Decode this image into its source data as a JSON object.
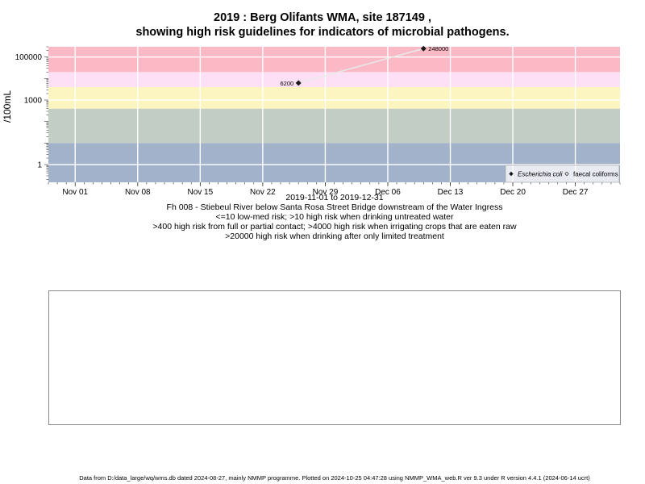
{
  "chart_data": {
    "type": "scatter",
    "title": "2019 : Berg Olifants WMA, site 187149 ,",
    "subtitle": "showing high risk guidelines for indicators of microbial pathogens.",
    "ylabel": "/100mL",
    "y_scale": "log10",
    "ylim": [
      0.15,
      300000
    ],
    "xlim": [
      "2019-10-29",
      "2020-01-01"
    ],
    "x_ticks": [
      {
        "date": "2019-11-01",
        "label": "Nov 01"
      },
      {
        "date": "2019-11-08",
        "label": "Nov 08"
      },
      {
        "date": "2019-11-15",
        "label": "Nov 15"
      },
      {
        "date": "2019-11-22",
        "label": "Nov 22"
      },
      {
        "date": "2019-11-29",
        "label": "Nov 29"
      },
      {
        "date": "2019-12-06",
        "label": "Dec 06"
      },
      {
        "date": "2019-12-13",
        "label": "Dec 13"
      },
      {
        "date": "2019-12-20",
        "label": "Dec 20"
      },
      {
        "date": "2019-12-27",
        "label": "Dec 27"
      }
    ],
    "y_ticks": [
      {
        "value": 1,
        "label": "1"
      },
      {
        "value": 1000,
        "label": "1000"
      },
      {
        "value": 100000,
        "label": "100000"
      }
    ],
    "bands": [
      {
        "from": 0.15,
        "to": 10,
        "color": "#a2b2cb"
      },
      {
        "from": 10,
        "to": 400,
        "color": "#c2cdc3"
      },
      {
        "from": 400,
        "to": 4000,
        "color": "#fdf5bf"
      },
      {
        "from": 4000,
        "to": 20000,
        "color": "#fde0f5"
      },
      {
        "from": 20000,
        "to": 300000,
        "color": "#fbb9c5"
      }
    ],
    "series": [
      {
        "name": "Escherichia coli",
        "marker": "filled-diamond",
        "color": "#1a1a1a",
        "points": [
          {
            "date": "2019-11-26",
            "value": 6200,
            "label": "6200"
          },
          {
            "date": "2019-12-10",
            "value": 248000,
            "label": "248000"
          }
        ]
      },
      {
        "name": "faecal coliforms",
        "marker": "open-diamond",
        "color": "#1a1a1a",
        "points": []
      }
    ],
    "legend_position": "bottom-right",
    "grid": true
  },
  "captions": [
    "2019-11-01 to 2019-12-31",
    "Fh 008 - Stiebeul River below Santa Rosa Street Bridge downstream of the Water Ingress",
    "<=10 low-med risk; >10 high risk when drinking untreated water",
    ">400 high risk from full or partial contact; >4000 high risk when irrigating crops that are eaten raw",
    ">20000 high risk when drinking after only limited treatment"
  ],
  "footer": "Data from D:/data_large/wq/wms.db dated 2024-08-27, mainly NMMP programme. Plotted on 2024-10-25 04:47:28 using NMMP_WMA_web.R ver 9.3 under R version 4.4.1 (2024-06-14 ucrt)"
}
